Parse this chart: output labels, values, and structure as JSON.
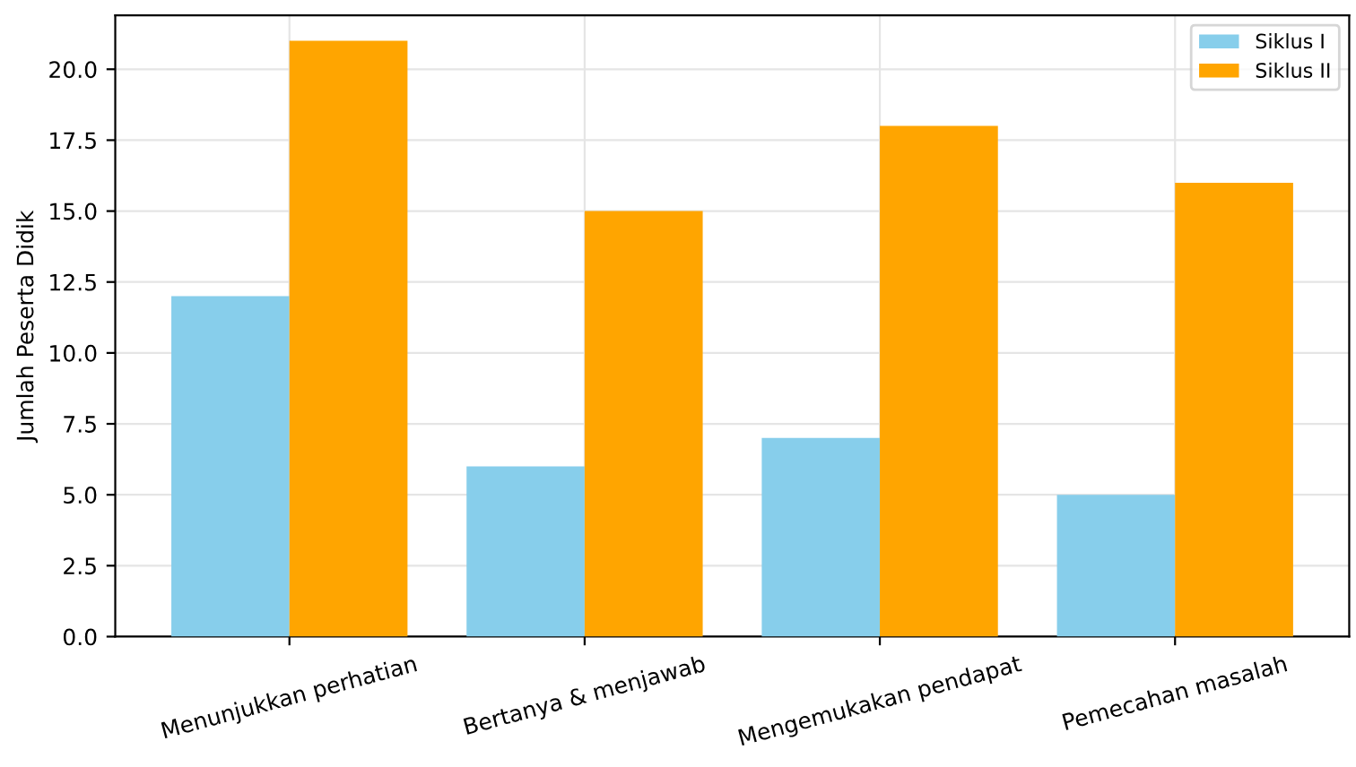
{
  "chart_data": {
    "type": "bar",
    "ylabel": "Jumlah Peserta Didik",
    "categories": [
      "Menunjukkan perhatian",
      "Bertanya & menjawab",
      "Mengemukakan pendapat",
      "Pemecahan masalah"
    ],
    "series": [
      {
        "name": "Siklus I",
        "color": "#87ceeb",
        "values": [
          12,
          6,
          7,
          5
        ]
      },
      {
        "name": "Siklus II",
        "color": "#ffa500",
        "values": [
          21,
          15,
          18,
          16
        ]
      }
    ],
    "ylim": [
      0,
      21.9
    ],
    "yticks": [
      {
        "value": 0,
        "label": "0.0"
      },
      2.5,
      {
        "value": 5,
        "label": "5.0"
      },
      7.5,
      {
        "value": 10,
        "label": "10.0"
      },
      12.5,
      {
        "value": 15,
        "label": "15.0"
      },
      17.5,
      {
        "value": 20,
        "label": "20.0"
      }
    ],
    "grid": true,
    "legend": "top right"
  }
}
